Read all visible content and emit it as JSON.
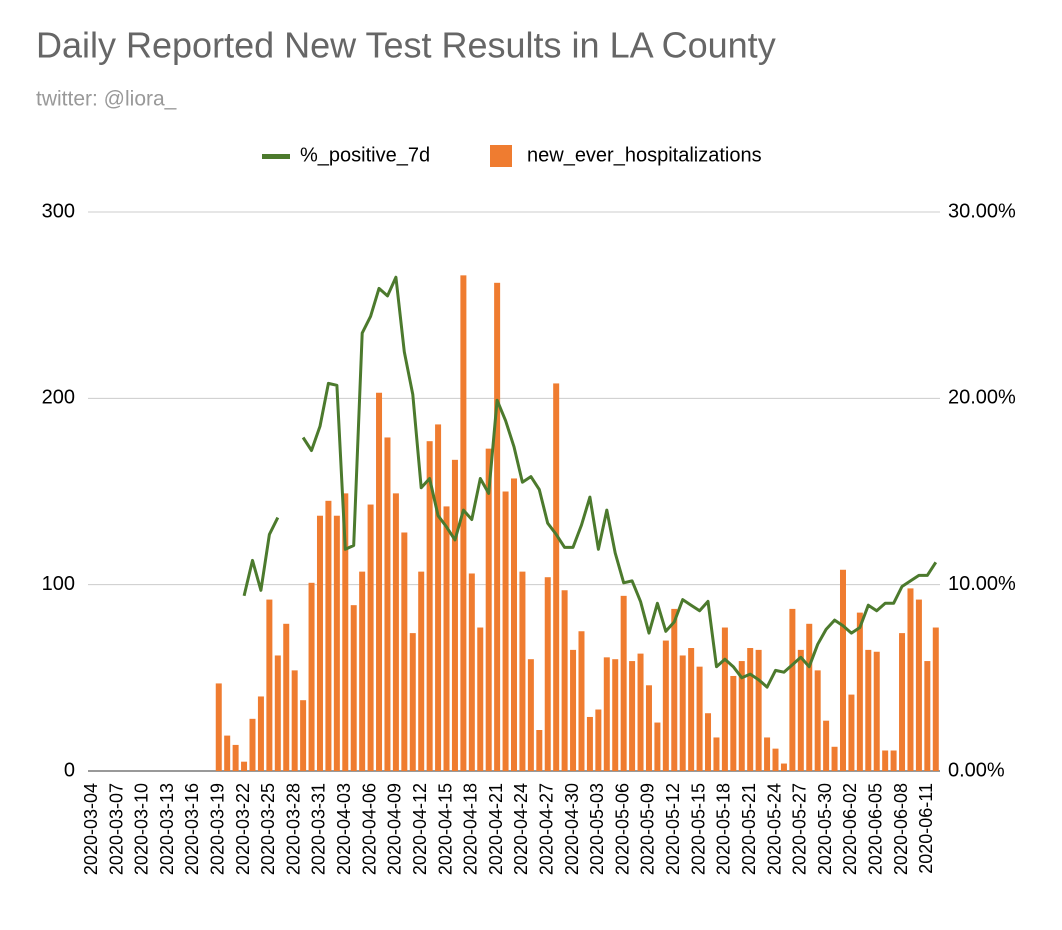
{
  "chart_data": {
    "type": "bar_line",
    "title": "Daily Reported New Test Results in LA County",
    "subtitle": "twitter: @liora_",
    "categories": [
      "2020-03-04",
      null,
      null,
      "2020-03-07",
      null,
      null,
      "2020-03-10",
      null,
      null,
      "2020-03-13",
      null,
      null,
      "2020-03-16",
      null,
      null,
      "2020-03-19",
      null,
      null,
      "2020-03-22",
      null,
      null,
      "2020-03-25",
      null,
      null,
      "2020-03-28",
      null,
      null,
      "2020-03-31",
      null,
      null,
      "2020-04-03",
      null,
      null,
      "2020-04-06",
      null,
      null,
      "2020-04-09",
      null,
      null,
      "2020-04-12",
      null,
      null,
      "2020-04-15",
      null,
      null,
      "2020-04-18",
      null,
      null,
      "2020-04-21",
      null,
      null,
      "2020-04-24",
      null,
      null,
      "2020-04-27",
      null,
      null,
      "2020-04-30",
      null,
      null,
      "2020-05-03",
      null,
      null,
      "2020-05-06",
      null,
      null,
      "2020-05-09",
      null,
      null,
      "2020-05-12",
      null,
      null,
      "2020-05-15",
      null,
      null,
      "2020-05-18",
      null,
      null,
      "2020-05-21",
      null,
      null,
      "2020-05-24",
      null,
      null,
      "2020-05-27",
      null,
      null,
      "2020-05-30",
      null,
      null,
      "2020-06-02",
      null,
      null,
      "2020-06-05",
      null,
      null,
      "2020-06-08",
      null,
      null,
      "2020-06-11",
      null
    ],
    "series": [
      {
        "name": "%_positive_7d",
        "color": "#4c7a2d",
        "kind": "line",
        "axis": "y2",
        "values": [
          null,
          null,
          null,
          null,
          null,
          null,
          null,
          null,
          null,
          null,
          null,
          null,
          null,
          null,
          null,
          null,
          null,
          null,
          9.4,
          11.3,
          9.7,
          12.7,
          13.6,
          null,
          null,
          17.9,
          17.2,
          18.5,
          20.8,
          20.7,
          11.9,
          12.1,
          23.5,
          24.4,
          25.9,
          25.5,
          26.5,
          22.5,
          20.2,
          15.2,
          15.7,
          13.7,
          13.1,
          12.4,
          14.0,
          13.5,
          15.7,
          14.9,
          19.9,
          18.8,
          17.4,
          15.5,
          15.8,
          15.1,
          13.3,
          12.7,
          12.0,
          12.0,
          13.2,
          14.7,
          11.9,
          14.0,
          11.7,
          10.1,
          10.2,
          9.1,
          7.4,
          9.0,
          7.5,
          8.0,
          9.2,
          8.9,
          8.6,
          9.1,
          5.6,
          6.0,
          5.6,
          5.0,
          5.2,
          4.9,
          4.5,
          5.4,
          5.3,
          5.7,
          6.1,
          5.6,
          6.8,
          7.6,
          8.1,
          7.8,
          7.4,
          7.7,
          8.9,
          8.6,
          9.0,
          9.0,
          9.9,
          10.2,
          10.5,
          10.5,
          11.2
        ]
      },
      {
        "name": "new_ever_hospitalizations",
        "color": "#ef7c30",
        "kind": "bar",
        "values": [
          0,
          0,
          0,
          0,
          0,
          0,
          0,
          0,
          0,
          0,
          0,
          0,
          0,
          0,
          0,
          47,
          19,
          14,
          5,
          28,
          40,
          92,
          62,
          79,
          54,
          38,
          101,
          137,
          145,
          137,
          149,
          89,
          107,
          143,
          203,
          179,
          149,
          128,
          74,
          107,
          177,
          186,
          142,
          167,
          266,
          106,
          77,
          173,
          262,
          150,
          157,
          107,
          60,
          22,
          104,
          208,
          97,
          65,
          75,
          29,
          33,
          61,
          60,
          94,
          59,
          63,
          46,
          26,
          70,
          87,
          62,
          66,
          56,
          31,
          18,
          77,
          51,
          59,
          66,
          65,
          18,
          12,
          4,
          87,
          65,
          79,
          54,
          27,
          13,
          108,
          41,
          85,
          65,
          64,
          11,
          11,
          74,
          98,
          92,
          59,
          77
        ]
      }
    ],
    "ylim": [
      0,
      300
    ],
    "yticks": [
      0,
      100,
      200,
      300
    ],
    "y2lim": [
      0,
      30
    ],
    "y2ticks": [
      {
        "value": 0,
        "label": "0.00%"
      },
      {
        "value": 10,
        "label": "10.00%"
      },
      {
        "value": 20,
        "label": "20.00%"
      },
      {
        "value": 30,
        "label": "30.00%"
      }
    ],
    "grid": true,
    "legend": "top"
  }
}
